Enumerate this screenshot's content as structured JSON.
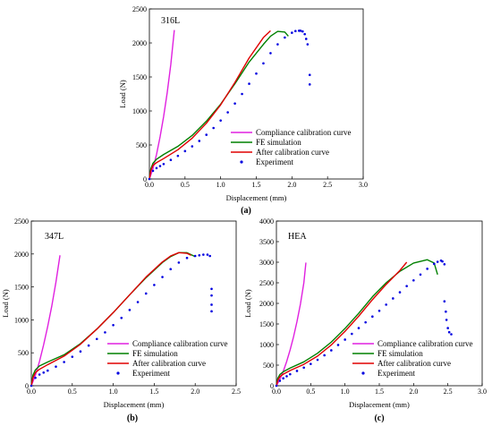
{
  "chart_data": [
    {
      "type": "line",
      "panel_label": "(a)",
      "material": "316L",
      "xlabel": "Displacement (mm)",
      "ylabel": "Load (N)",
      "xlim": [
        0,
        3.0
      ],
      "ylim": [
        0,
        2500
      ],
      "xticks": [
        "0.0",
        "0.5",
        "1.0",
        "1.5",
        "2.0",
        "2.5",
        "3.0"
      ],
      "yticks": [
        "0",
        "500",
        "1000",
        "1500",
        "2000",
        "2500"
      ],
      "legend_position": "bottom-right",
      "series": [
        {
          "name": "Compliance calibration curve",
          "color": "#e020e0",
          "style": "line",
          "x": [
            0,
            0.05,
            0.1,
            0.15,
            0.2,
            0.25,
            0.3,
            0.35
          ],
          "y": [
            0,
            150,
            360,
            620,
            920,
            1270,
            1680,
            2190
          ]
        },
        {
          "name": "FE simulation",
          "color": "#008000",
          "style": "line",
          "x": [
            0,
            0.02,
            0.05,
            0.1,
            0.2,
            0.4,
            0.6,
            0.8,
            1.0,
            1.2,
            1.4,
            1.6,
            1.7,
            1.8,
            1.9,
            1.95
          ],
          "y": [
            0,
            150,
            230,
            290,
            360,
            480,
            640,
            850,
            1100,
            1400,
            1720,
            1980,
            2100,
            2170,
            2160,
            2100
          ]
        },
        {
          "name": "After calibration curve",
          "color": "#e00000",
          "style": "line",
          "x": [
            0,
            0.02,
            0.05,
            0.1,
            0.2,
            0.4,
            0.6,
            0.8,
            1.0,
            1.2,
            1.4,
            1.6,
            1.7
          ],
          "y": [
            0,
            120,
            200,
            240,
            300,
            430,
            600,
            820,
            1090,
            1420,
            1780,
            2080,
            2180
          ]
        },
        {
          "name": "Experiment",
          "color": "#0000e0",
          "style": "dots",
          "x": [
            0,
            0.05,
            0.1,
            0.15,
            0.2,
            0.3,
            0.4,
            0.5,
            0.6,
            0.7,
            0.8,
            0.9,
            1.0,
            1.1,
            1.2,
            1.3,
            1.4,
            1.5,
            1.6,
            1.7,
            1.8,
            1.9,
            2.0,
            2.05,
            2.1,
            2.12,
            2.15,
            2.18,
            2.2,
            2.22,
            2.25,
            2.25
          ],
          "y": [
            0,
            120,
            160,
            190,
            220,
            280,
            340,
            410,
            480,
            560,
            650,
            750,
            860,
            980,
            1110,
            1250,
            1400,
            1550,
            1700,
            1850,
            1980,
            2080,
            2150,
            2175,
            2180,
            2180,
            2170,
            2130,
            2060,
            1980,
            1530,
            1390
          ]
        }
      ]
    },
    {
      "type": "line",
      "panel_label": "(b)",
      "material": "347L",
      "xlabel": "Displacement (mm)",
      "ylabel": "Load (N)",
      "xlim": [
        0,
        2.5
      ],
      "ylim": [
        0,
        2500
      ],
      "xticks": [
        "0.0",
        "0.5",
        "1.0",
        "1.5",
        "2.0",
        "2.5"
      ],
      "yticks": [
        "0",
        "500",
        "1000",
        "1500",
        "2000",
        "2500"
      ],
      "legend_position": "bottom-right",
      "series": [
        {
          "name": "Compliance calibration curve",
          "color": "#e020e0",
          "style": "line",
          "x": [
            0,
            0.05,
            0.1,
            0.15,
            0.2,
            0.25,
            0.3,
            0.35
          ],
          "y": [
            0,
            160,
            370,
            620,
            900,
            1210,
            1570,
            1980
          ]
        },
        {
          "name": "FE simulation",
          "color": "#008000",
          "style": "line",
          "x": [
            0,
            0.02,
            0.05,
            0.1,
            0.2,
            0.4,
            0.6,
            0.8,
            1.0,
            1.2,
            1.4,
            1.6,
            1.7,
            1.8,
            1.9,
            2.0
          ],
          "y": [
            0,
            160,
            240,
            300,
            360,
            470,
            640,
            860,
            1110,
            1380,
            1640,
            1870,
            1960,
            2020,
            2020,
            1960
          ]
        },
        {
          "name": "After calibration curve",
          "color": "#e00000",
          "style": "line",
          "x": [
            0,
            0.02,
            0.05,
            0.1,
            0.2,
            0.4,
            0.6,
            0.8,
            1.0,
            1.2,
            1.4,
            1.6,
            1.7,
            1.8,
            1.9,
            1.95
          ],
          "y": [
            0,
            120,
            200,
            250,
            320,
            450,
            630,
            860,
            1110,
            1380,
            1650,
            1880,
            1970,
            2020,
            2010,
            1980
          ]
        },
        {
          "name": "Experiment",
          "color": "#0000e0",
          "style": "dots",
          "x": [
            0,
            0.05,
            0.1,
            0.15,
            0.2,
            0.3,
            0.4,
            0.5,
            0.6,
            0.7,
            0.8,
            0.9,
            1.0,
            1.1,
            1.2,
            1.3,
            1.4,
            1.5,
            1.6,
            1.7,
            1.8,
            1.9,
            2.0,
            2.05,
            2.1,
            2.15,
            2.18,
            2.2,
            2.2,
            2.2,
            2.2
          ],
          "y": [
            0,
            120,
            170,
            200,
            230,
            290,
            360,
            440,
            520,
            610,
            710,
            810,
            920,
            1030,
            1150,
            1270,
            1400,
            1530,
            1650,
            1770,
            1870,
            1940,
            1970,
            1980,
            1990,
            1990,
            1970,
            1470,
            1370,
            1230,
            1130
          ]
        }
      ]
    },
    {
      "type": "line",
      "panel_label": "(c)",
      "material": "HEA",
      "xlabel": "Displacement (mm)",
      "ylabel": "Load (N)",
      "xlim": [
        0,
        3.0
      ],
      "ylim": [
        0,
        4000
      ],
      "xticks": [
        "0.0",
        "0.5",
        "1.0",
        "1.5",
        "2.0",
        "2.5",
        "3.0"
      ],
      "yticks": [
        "0",
        "500",
        "1000",
        "1500",
        "2000",
        "2500",
        "3000",
        "3500",
        "4000"
      ],
      "legend_position": "bottom-right",
      "series": [
        {
          "name": "Compliance calibration curve",
          "color": "#e020e0",
          "style": "line",
          "x": [
            0,
            0.05,
            0.1,
            0.15,
            0.2,
            0.25,
            0.3,
            0.35,
            0.4,
            0.43
          ],
          "y": [
            0,
            150,
            350,
            590,
            870,
            1190,
            1560,
            1980,
            2500,
            2990
          ]
        },
        {
          "name": "FE simulation",
          "color": "#008000",
          "style": "line",
          "x": [
            0,
            0.02,
            0.05,
            0.1,
            0.2,
            0.4,
            0.6,
            0.8,
            1.0,
            1.2,
            1.4,
            1.6,
            1.8,
            2.0,
            2.2,
            2.3,
            2.35
          ],
          "y": [
            0,
            180,
            270,
            340,
            430,
            580,
            790,
            1060,
            1390,
            1760,
            2160,
            2500,
            2780,
            2980,
            3060,
            2980,
            2700
          ]
        },
        {
          "name": "After calibration curve",
          "color": "#e00000",
          "style": "line",
          "x": [
            0,
            0.02,
            0.05,
            0.1,
            0.2,
            0.4,
            0.6,
            0.8,
            1.0,
            1.2,
            1.4,
            1.6,
            1.8,
            1.9
          ],
          "y": [
            0,
            130,
            220,
            280,
            370,
            520,
            720,
            990,
            1320,
            1690,
            2090,
            2460,
            2800,
            3000
          ]
        },
        {
          "name": "Experiment",
          "color": "#0000e0",
          "style": "dots",
          "x": [
            0,
            0.05,
            0.1,
            0.15,
            0.2,
            0.3,
            0.4,
            0.5,
            0.6,
            0.7,
            0.8,
            0.9,
            1.0,
            1.1,
            1.2,
            1.3,
            1.4,
            1.5,
            1.6,
            1.7,
            1.8,
            1.9,
            2.0,
            2.1,
            2.2,
            2.3,
            2.35,
            2.4,
            2.42,
            2.45,
            2.45,
            2.47,
            2.48,
            2.5,
            2.52,
            2.55
          ],
          "y": [
            0,
            120,
            180,
            230,
            280,
            360,
            440,
            530,
            630,
            740,
            860,
            990,
            1120,
            1260,
            1400,
            1540,
            1680,
            1820,
            1970,
            2120,
            2270,
            2420,
            2560,
            2700,
            2840,
            2960,
            3010,
            3040,
            3020,
            2950,
            2050,
            1800,
            1600,
            1400,
            1300,
            1250
          ]
        }
      ]
    }
  ]
}
